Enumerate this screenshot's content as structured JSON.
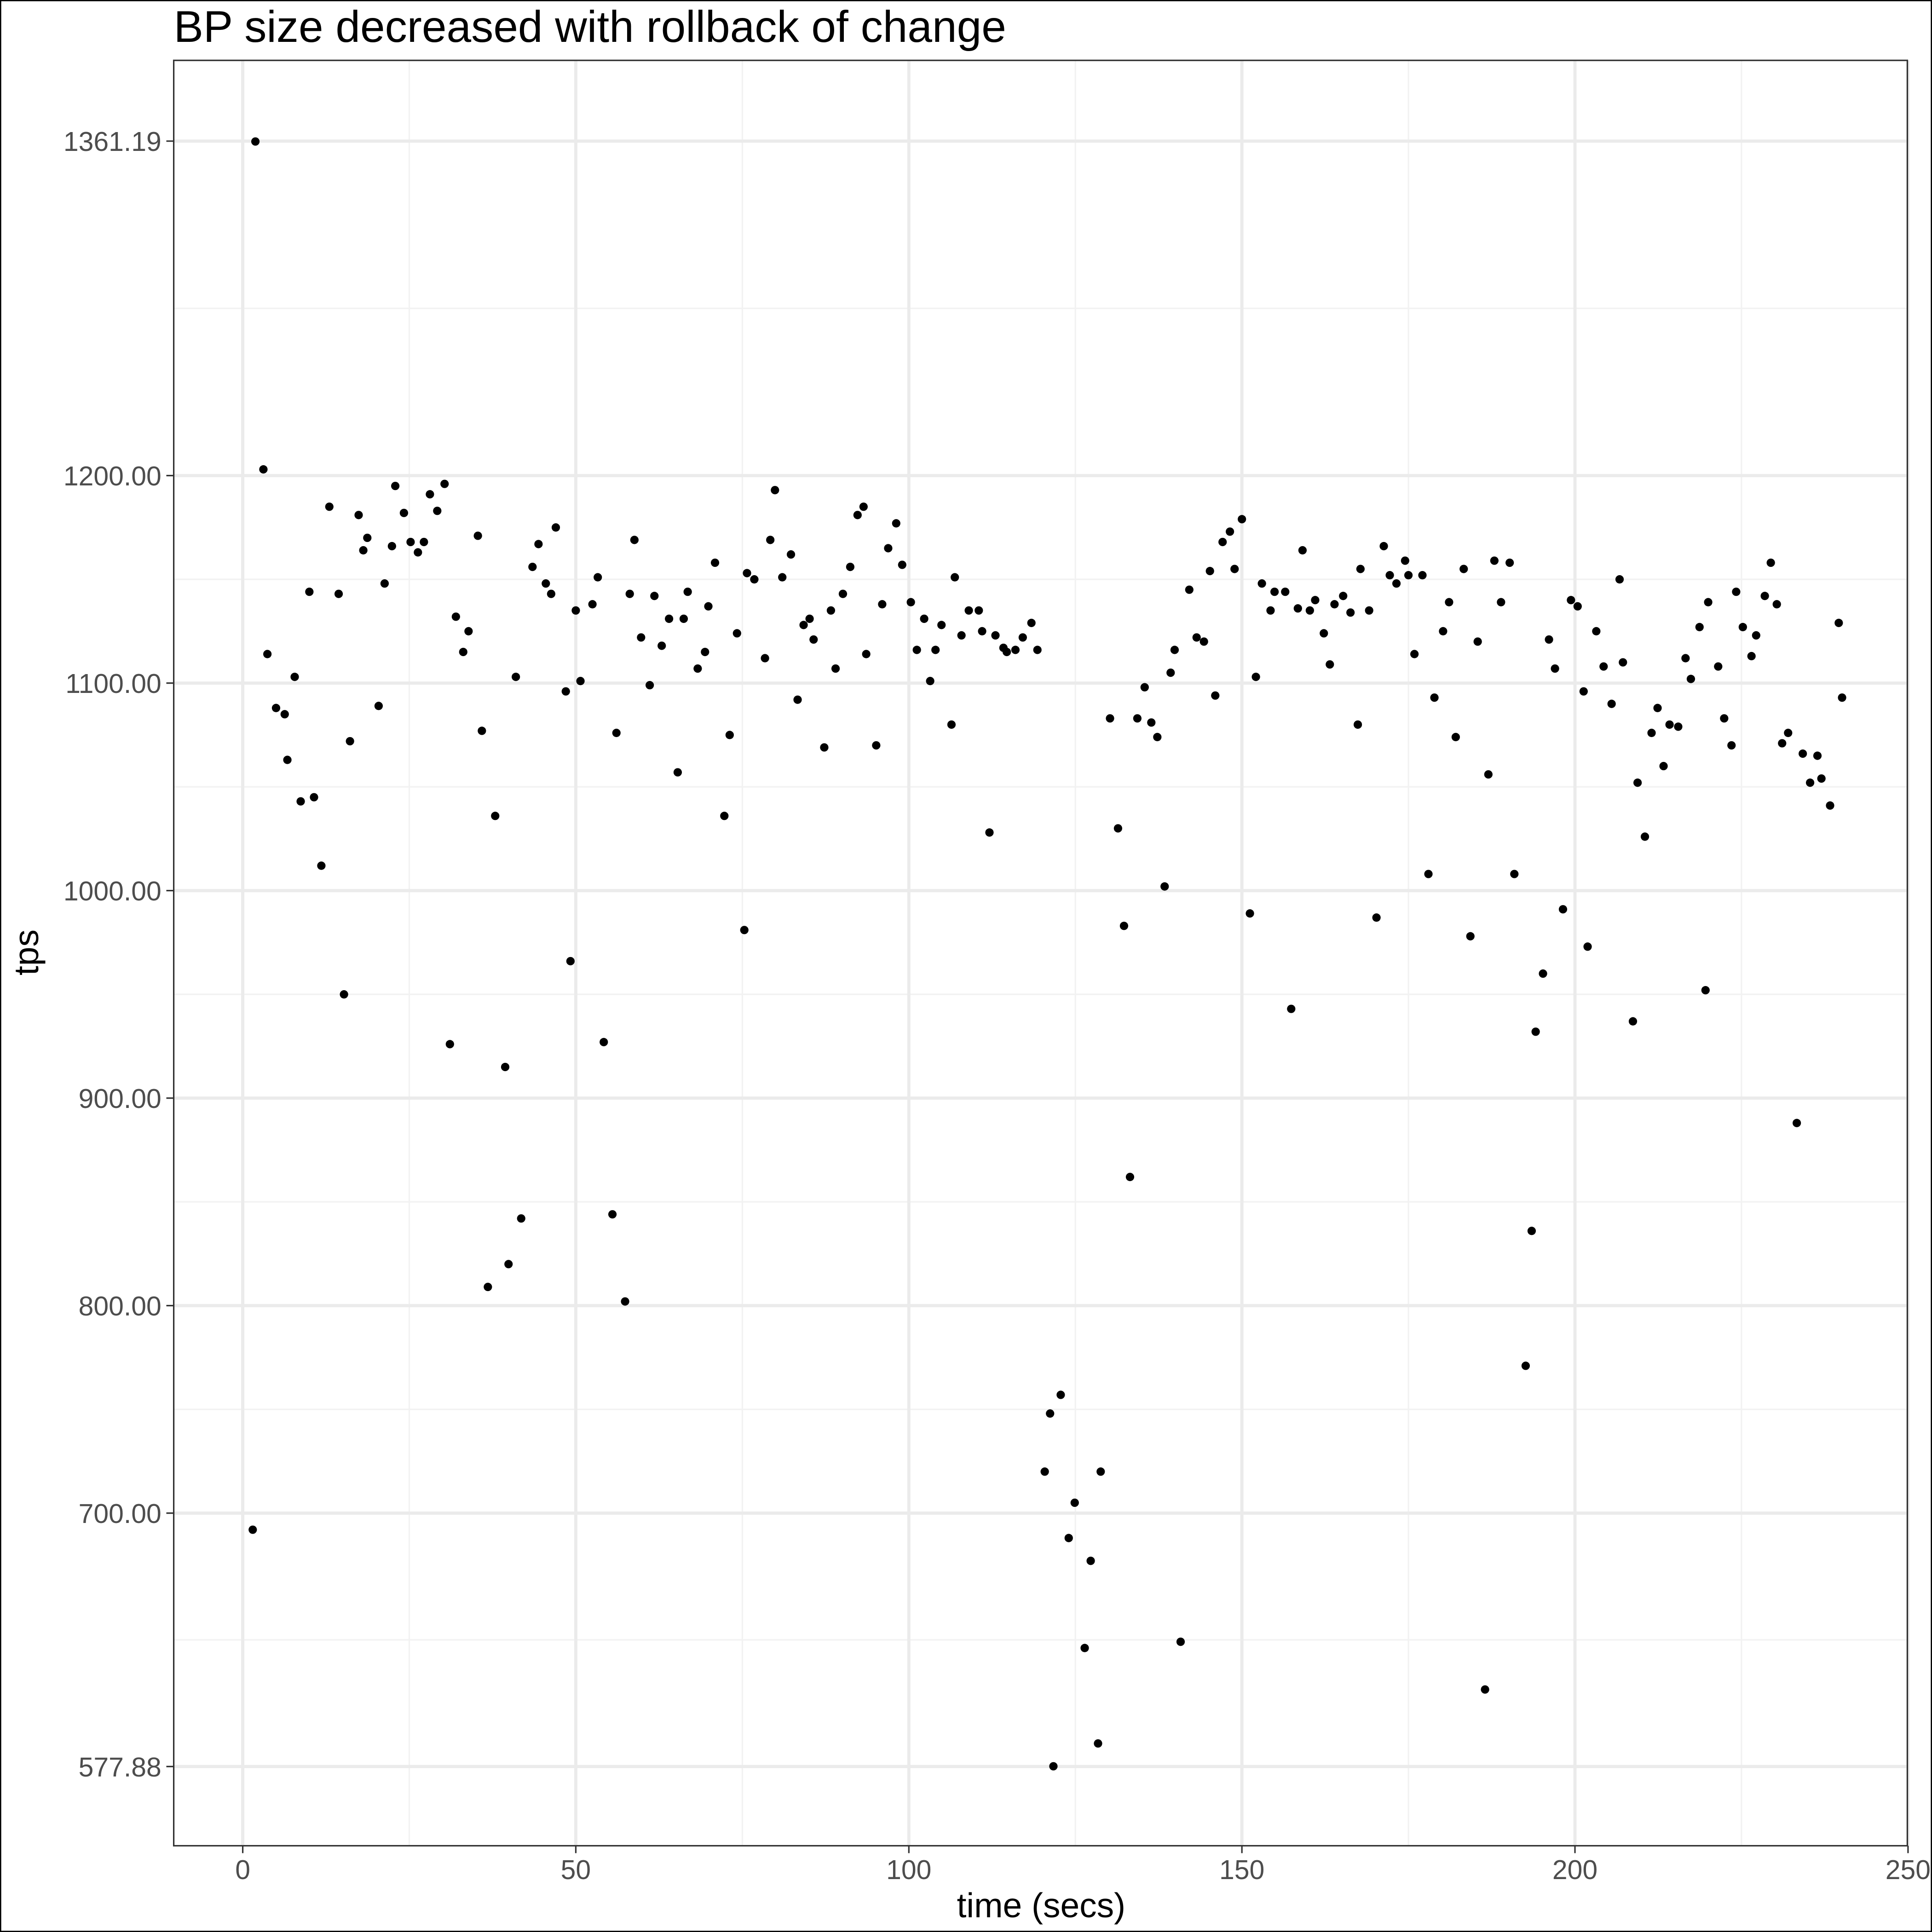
{
  "chart_data": {
    "type": "scatter",
    "title": "BP size decreased with rollback of change",
    "xlabel": "time (secs)",
    "ylabel": "tps",
    "color": "#000000",
    "grid": true,
    "xlim": [
      -10.36,
      249.9
    ],
    "ylim": [
      539.7,
      1400.1
    ],
    "xticks": [
      0,
      50,
      100,
      150,
      200,
      250
    ],
    "yticks": [
      577.88,
      {
        "value": 700,
        "label": "700.00"
      },
      {
        "value": 800,
        "label": "800.00"
      },
      {
        "value": 900,
        "label": "900.00"
      },
      {
        "value": 1000,
        "label": "1000.00"
      },
      {
        "value": 1100,
        "label": "1100.00"
      },
      {
        "value": 1200,
        "label": "1200.00"
      },
      1361.19
    ],
    "x": [
      1.5,
      1.9,
      3.1,
      3.7,
      5.0,
      6.3,
      6.7,
      7.8,
      8.7,
      10.0,
      10.7,
      11.8,
      13.0,
      14.4,
      15.2,
      16.1,
      17.4,
      18.1,
      18.7,
      20.4,
      21.3,
      22.4,
      22.9,
      24.2,
      25.2,
      26.3,
      27.2,
      28.1,
      29.2,
      30.3,
      31.1,
      32.0,
      33.1,
      33.9,
      35.3,
      35.9,
      36.8,
      37.9,
      39.4,
      39.9,
      41.0,
      41.8,
      43.5,
      44.4,
      45.5,
      46.3,
      47.0,
      48.5,
      49.2,
      50.0,
      50.7,
      52.5,
      53.3,
      54.2,
      55.5,
      56.1,
      57.4,
      58.1,
      58.8,
      59.8,
      61.1,
      61.8,
      62.9,
      64.0,
      65.3,
      66.2,
      66.8,
      68.3,
      69.4,
      69.9,
      70.9,
      72.3,
      73.1,
      74.2,
      75.3,
      75.7,
      76.8,
      78.4,
      79.2,
      79.9,
      81.0,
      82.3,
      83.3,
      84.2,
      85.1,
      85.7,
      87.3,
      88.3,
      89.0,
      90.1,
      91.2,
      92.3,
      93.2,
      93.6,
      95.1,
      96.0,
      96.9,
      98.1,
      99.0,
      100.3,
      101.2,
      102.3,
      103.2,
      104.0,
      104.9,
      106.4,
      106.9,
      107.9,
      109.0,
      110.5,
      111.0,
      112.1,
      113.0,
      114.2,
      114.7,
      116.0,
      117.1,
      118.4,
      119.3,
      120.4,
      121.2,
      121.7,
      122.8,
      124.0,
      124.9,
      126.4,
      127.3,
      128.4,
      128.8,
      130.2,
      131.4,
      132.3,
      133.2,
      134.3,
      135.4,
      136.4,
      137.3,
      138.4,
      139.3,
      139.9,
      140.8,
      142.1,
      143.2,
      144.3,
      145.2,
      146.0,
      147.1,
      148.2,
      148.9,
      150.0,
      151.2,
      152.1,
      153.0,
      154.3,
      154.9,
      156.5,
      157.4,
      158.4,
      159.1,
      160.2,
      161.0,
      162.3,
      163.2,
      163.9,
      165.2,
      166.3,
      167.4,
      167.8,
      169.1,
      170.2,
      171.3,
      172.2,
      173.2,
      174.5,
      175.0,
      175.9,
      177.1,
      178.0,
      178.9,
      180.2,
      181.1,
      182.1,
      183.3,
      184.3,
      185.4,
      186.5,
      187.0,
      187.9,
      188.9,
      190.2,
      190.9,
      192.6,
      193.5,
      194.1,
      195.2,
      196.1,
      197.0,
      198.2,
      199.4,
      200.4,
      201.3,
      201.9,
      203.2,
      204.3,
      205.5,
      206.7,
      207.2,
      208.7,
      209.4,
      210.5,
      211.5,
      212.4,
      213.3,
      214.2,
      215.5,
      216.6,
      217.4,
      218.7,
      219.6,
      220.0,
      221.5,
      222.4,
      223.5,
      224.2,
      225.2,
      226.5,
      227.2,
      228.5,
      229.4,
      230.3,
      231.1,
      232.0,
      233.3,
      234.2,
      235.3,
      236.4,
      237.0,
      238.3,
      239.6,
      240.1
    ],
    "y": [
      692,
      1361,
      1203,
      1114,
      1088,
      1085,
      1063,
      1103,
      1043,
      1144,
      1045,
      1012,
      1185,
      1143,
      950,
      1072,
      1181,
      1164,
      1170,
      1089,
      1148,
      1166,
      1195,
      1182,
      1168,
      1163,
      1168,
      1191,
      1183,
      1196,
      926,
      1132,
      1115,
      1125,
      1171,
      1077,
      809,
      1036,
      915,
      820,
      1103,
      842,
      1156,
      1167,
      1148,
      1143,
      1175,
      1096,
      966,
      1135,
      1101,
      1138,
      1151,
      927,
      844,
      1076,
      802,
      1143,
      1169,
      1122,
      1099,
      1142,
      1118,
      1131,
      1057,
      1131,
      1144,
      1107,
      1115,
      1137,
      1158,
      1036,
      1075,
      1124,
      981,
      1153,
      1150,
      1112,
      1169,
      1193,
      1151,
      1162,
      1092,
      1128,
      1131,
      1121,
      1069,
      1135,
      1107,
      1143,
      1156,
      1181,
      1185,
      1114,
      1070,
      1138,
      1165,
      1177,
      1157,
      1139,
      1116,
      1131,
      1101,
      1116,
      1128,
      1080,
      1151,
      1123,
      1135,
      1135,
      1125,
      1028,
      1123,
      1117,
      1115,
      1116,
      1122,
      1129,
      1116,
      720,
      748,
      578,
      757,
      688,
      705,
      635,
      677,
      589,
      720,
      1083,
      1030,
      983,
      862,
      1083,
      1098,
      1081,
      1074,
      1002,
      1105,
      1116,
      638,
      1145,
      1122,
      1120,
      1154,
      1094,
      1168,
      1173,
      1155,
      1179,
      989,
      1103,
      1148,
      1135,
      1144,
      1144,
      943,
      1136,
      1164,
      1135,
      1140,
      1124,
      1109,
      1138,
      1142,
      1134,
      1080,
      1155,
      1135,
      987,
      1166,
      1152,
      1148,
      1159,
      1152,
      1114,
      1152,
      1008,
      1093,
      1125,
      1139,
      1074,
      1155,
      978,
      1120,
      615,
      1056,
      1159,
      1139,
      1158,
      1008,
      771,
      836,
      932,
      960,
      1121,
      1107,
      991,
      1140,
      1137,
      1096,
      973,
      1125,
      1108,
      1090,
      1150,
      1110,
      937,
      1052,
      1026,
      1076,
      1088,
      1060,
      1080,
      1079,
      1112,
      1102,
      1127,
      952,
      1139,
      1108,
      1083,
      1070,
      1144,
      1127,
      1113,
      1123,
      1142,
      1158,
      1138,
      1071,
      1076,
      888,
      1066,
      1052,
      1065,
      1054,
      1041,
      1129,
      1093
    ]
  }
}
